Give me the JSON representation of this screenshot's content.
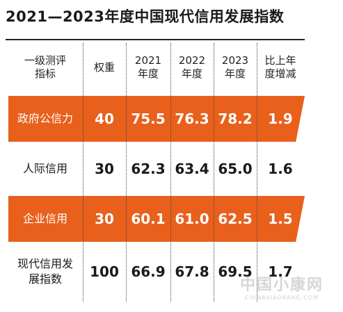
{
  "title": "2021—2023年度中国现代信用发展指数",
  "table": {
    "headers": [
      [
        "一级测评",
        "指标"
      ],
      [
        "权重"
      ],
      [
        "2021",
        "年度"
      ],
      [
        "2022",
        "年度"
      ],
      [
        "2023",
        "年度"
      ],
      [
        "比上年",
        "度增减"
      ]
    ],
    "rows": [
      {
        "label": [
          "政府公信力"
        ],
        "weight": "40",
        "y2021": "75.5",
        "y2022": "76.3",
        "y2023": "78.2",
        "change": "1.9",
        "highlight": true
      },
      {
        "label": [
          "人际信用"
        ],
        "weight": "30",
        "y2021": "62.3",
        "y2022": "63.4",
        "y2023": "65.0",
        "change": "1.6",
        "highlight": false
      },
      {
        "label": [
          "企业信用"
        ],
        "weight": "30",
        "y2021": "60.1",
        "y2022": "61.0",
        "y2023": "62.5",
        "change": "1.5",
        "highlight": true
      },
      {
        "label": [
          "现代信用发",
          "展指数"
        ],
        "weight": "100",
        "y2021": "66.9",
        "y2022": "67.8",
        "y2023": "69.5",
        "change": "1.7",
        "highlight": false
      }
    ]
  },
  "watermark": {
    "main": "中国小康网",
    "sub": "CHINAXIAOKANG.COM"
  },
  "colors": {
    "accent": "#e8601c",
    "text": "#1a1a1a",
    "on_accent": "#ffffff"
  }
}
